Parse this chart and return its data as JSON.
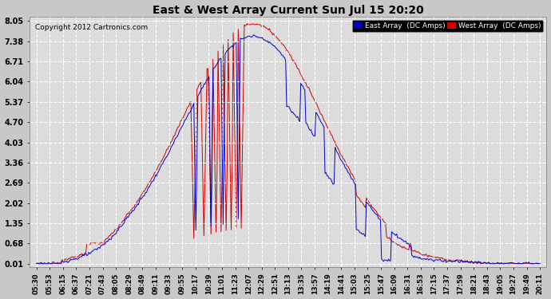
{
  "title": "East & West Array Current Sun Jul 15 20:20",
  "copyright": "Copyright 2012 Cartronics.com",
  "legend_east": "East Array  (DC Amps)",
  "legend_west": "West Array  (DC Amps)",
  "east_color": "#0000CC",
  "west_color": "#CC0000",
  "background_color": "#C8C8C8",
  "plot_bg_color": "#DCDCDC",
  "grid_color": "#FFFFFF",
  "yticks": [
    0.01,
    0.68,
    1.35,
    2.02,
    2.69,
    3.36,
    4.03,
    4.7,
    5.37,
    6.04,
    6.71,
    7.38,
    8.05
  ],
  "ylim_min": -0.1,
  "ylim_max": 8.2,
  "time_labels": [
    "05:30",
    "05:53",
    "06:15",
    "06:37",
    "07:21",
    "07:43",
    "08:05",
    "08:29",
    "08:49",
    "09:11",
    "09:33",
    "09:55",
    "10:17",
    "10:39",
    "11:01",
    "11:23",
    "12:07",
    "12:29",
    "12:51",
    "13:13",
    "13:35",
    "13:57",
    "14:19",
    "14:41",
    "15:03",
    "15:25",
    "15:47",
    "16:09",
    "16:31",
    "16:53",
    "17:15",
    "17:37",
    "17:59",
    "18:21",
    "18:43",
    "19:05",
    "19:27",
    "19:49",
    "20:11"
  ],
  "title_fontsize": 10,
  "tick_fontsize": 6,
  "ytick_fontsize": 7
}
